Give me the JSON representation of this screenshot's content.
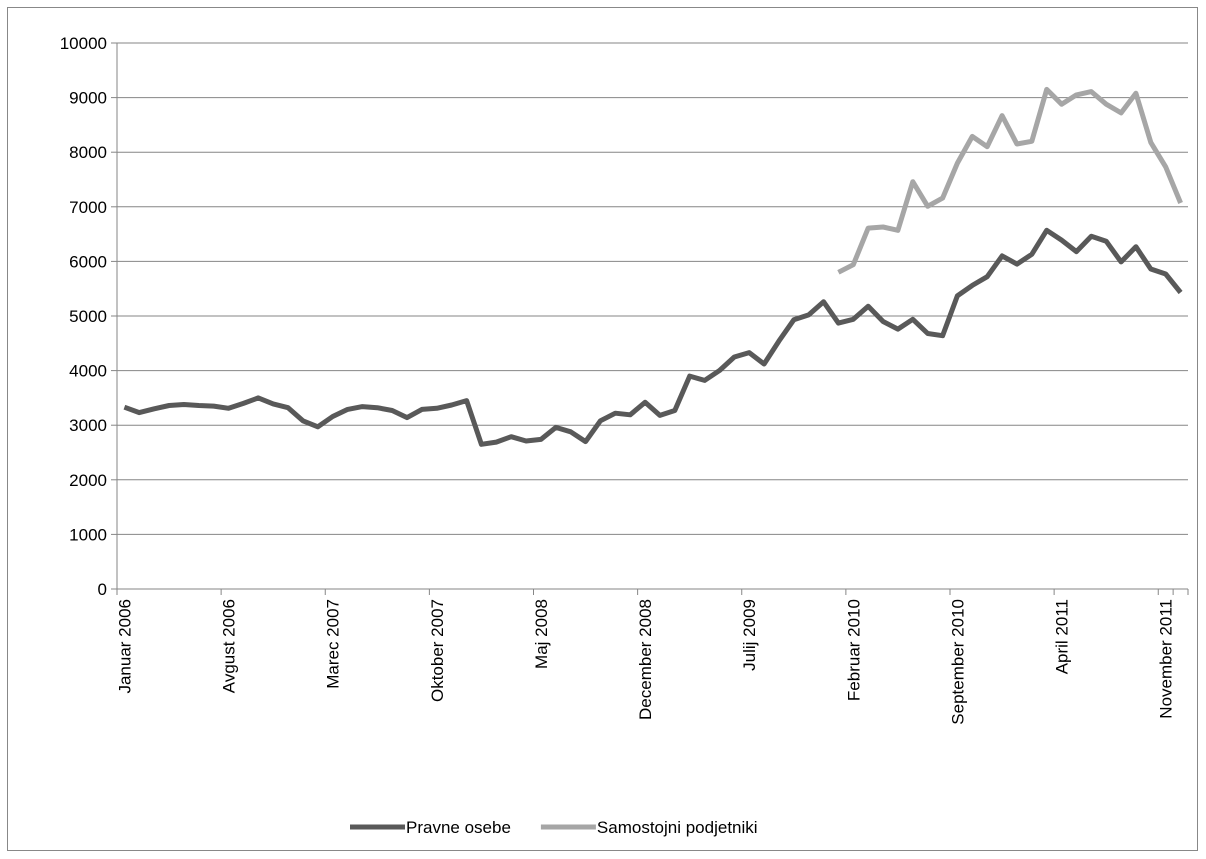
{
  "chart_data": {
    "type": "line",
    "categories": [
      "Januar 2006",
      null,
      null,
      null,
      null,
      null,
      null,
      "Avgust 2006",
      null,
      null,
      null,
      null,
      null,
      null,
      "Marec 2007",
      null,
      null,
      null,
      null,
      null,
      null,
      "Oktober 2007",
      null,
      null,
      null,
      null,
      null,
      null,
      "Maj 2008",
      null,
      null,
      null,
      null,
      null,
      null,
      "December 2008",
      null,
      null,
      null,
      null,
      null,
      null,
      "Julij 2009",
      null,
      null,
      null,
      null,
      null,
      null,
      "Februar 2010",
      null,
      null,
      null,
      null,
      null,
      null,
      "September 2010",
      null,
      null,
      null,
      null,
      null,
      null,
      "April 2011",
      null,
      null,
      null,
      null,
      null,
      null,
      "November 2011",
      null
    ],
    "series": [
      {
        "name": "Pravne osebe",
        "color": "#595959",
        "values": [
          3330,
          3230,
          3300,
          3360,
          3380,
          3360,
          3350,
          3310,
          3400,
          3500,
          3390,
          3320,
          3080,
          2970,
          3160,
          3290,
          3340,
          3320,
          3270,
          3140,
          3290,
          3310,
          3370,
          3450,
          2650,
          2690,
          2790,
          2710,
          2740,
          2960,
          2880,
          2700,
          3080,
          3220,
          3190,
          3420,
          3180,
          3270,
          3900,
          3820,
          4000,
          4250,
          4330,
          4120,
          4540,
          4930,
          5020,
          5260,
          4870,
          4940,
          5180,
          4900,
          4760,
          4940,
          4680,
          4640,
          5370,
          5560,
          5720,
          6100,
          5950,
          6130,
          6570,
          6390,
          6180,
          6460,
          6370,
          5990,
          6270,
          5860,
          5770,
          5430
        ]
      },
      {
        "name": "Samostojni podjetniki",
        "color": "#a6a6a6",
        "values": [
          null,
          null,
          null,
          null,
          null,
          null,
          null,
          null,
          null,
          null,
          null,
          null,
          null,
          null,
          null,
          null,
          null,
          null,
          null,
          null,
          null,
          null,
          null,
          null,
          null,
          null,
          null,
          null,
          null,
          null,
          null,
          null,
          null,
          null,
          null,
          null,
          null,
          null,
          null,
          null,
          null,
          null,
          null,
          null,
          null,
          null,
          null,
          null,
          5800,
          5940,
          6610,
          6630,
          6570,
          7460,
          7010,
          7160,
          7800,
          8290,
          8100,
          8670,
          8150,
          8200,
          9150,
          8880,
          9050,
          9110,
          8880,
          8720,
          9080,
          8180,
          7730,
          7070
        ]
      }
    ],
    "ylim": [
      0,
      10000
    ],
    "yticks": [
      0,
      1000,
      2000,
      3000,
      4000,
      5000,
      6000,
      7000,
      8000,
      9000,
      10000
    ],
    "grid": true,
    "legend": "bottom"
  }
}
